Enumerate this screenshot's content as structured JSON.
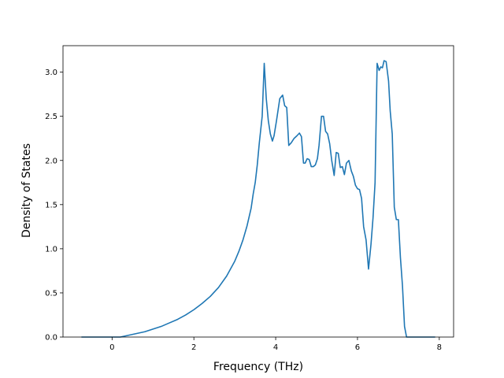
{
  "chart_data": {
    "type": "line",
    "xlabel": "Frequency (THz)",
    "ylabel": "Density of States",
    "xlim": [
      -1.2,
      8.35
    ],
    "ylim": [
      0.0,
      3.3
    ],
    "xticks": [
      0,
      2,
      4,
      6,
      8
    ],
    "yticks": [
      0.0,
      0.5,
      1.0,
      1.5,
      2.0,
      2.5,
      3.0
    ],
    "xtick_labels": [
      "0",
      "2",
      "4",
      "6",
      "8"
    ],
    "ytick_labels": [
      "0.0",
      "0.5",
      "1.0",
      "1.5",
      "2.0",
      "2.5",
      "3.0"
    ],
    "grid": false,
    "line_color": "#1f77b4",
    "series": [
      {
        "x": [
          -0.75,
          0.0,
          0.2,
          0.4,
          0.6,
          0.8,
          1.0,
          1.2,
          1.4,
          1.6,
          1.8,
          2.0,
          2.2,
          2.4,
          2.6,
          2.8,
          3.0,
          3.1,
          3.2,
          3.3,
          3.4,
          3.45,
          3.5,
          3.55,
          3.6,
          3.67,
          3.72,
          3.77,
          3.82,
          3.87,
          3.92,
          3.96,
          4.02,
          4.1,
          4.17,
          4.22,
          4.27,
          4.32,
          4.38,
          4.45,
          4.52,
          4.58,
          4.63,
          4.68,
          4.72,
          4.77,
          4.82,
          4.87,
          4.92,
          4.97,
          5.02,
          5.06,
          5.12,
          5.17,
          5.22,
          5.27,
          5.32,
          5.37,
          5.43,
          5.48,
          5.53,
          5.58,
          5.63,
          5.68,
          5.73,
          5.79,
          5.85,
          5.9,
          5.95,
          6.0,
          6.05,
          6.1,
          6.15,
          6.21,
          6.27,
          6.33,
          6.38,
          6.43,
          6.48,
          6.53,
          6.57,
          6.61,
          6.65,
          6.7,
          6.76,
          6.8,
          6.85,
          6.9,
          6.95,
          7.0,
          7.05,
          7.1,
          7.15,
          7.2,
          7.9
        ],
        "y": [
          0.0,
          0.0,
          0.0,
          0.02,
          0.04,
          0.06,
          0.09,
          0.12,
          0.16,
          0.2,
          0.25,
          0.31,
          0.38,
          0.46,
          0.56,
          0.69,
          0.86,
          0.97,
          1.1,
          1.26,
          1.46,
          1.62,
          1.75,
          1.95,
          2.2,
          2.5,
          3.1,
          2.7,
          2.45,
          2.3,
          2.22,
          2.28,
          2.45,
          2.7,
          2.74,
          2.62,
          2.6,
          2.17,
          2.2,
          2.25,
          2.28,
          2.31,
          2.27,
          1.97,
          1.97,
          2.02,
          2.01,
          1.93,
          1.93,
          1.95,
          2.02,
          2.17,
          2.5,
          2.5,
          2.33,
          2.3,
          2.19,
          2.0,
          1.83,
          2.09,
          2.08,
          1.92,
          1.93,
          1.84,
          1.97,
          2.0,
          1.88,
          1.82,
          1.72,
          1.68,
          1.67,
          1.57,
          1.25,
          1.1,
          0.77,
          1.05,
          1.35,
          1.75,
          3.1,
          3.02,
          3.06,
          3.05,
          3.13,
          3.12,
          2.9,
          2.56,
          2.3,
          1.47,
          1.33,
          1.33,
          0.9,
          0.58,
          0.12,
          0.0,
          0.0
        ]
      }
    ]
  }
}
